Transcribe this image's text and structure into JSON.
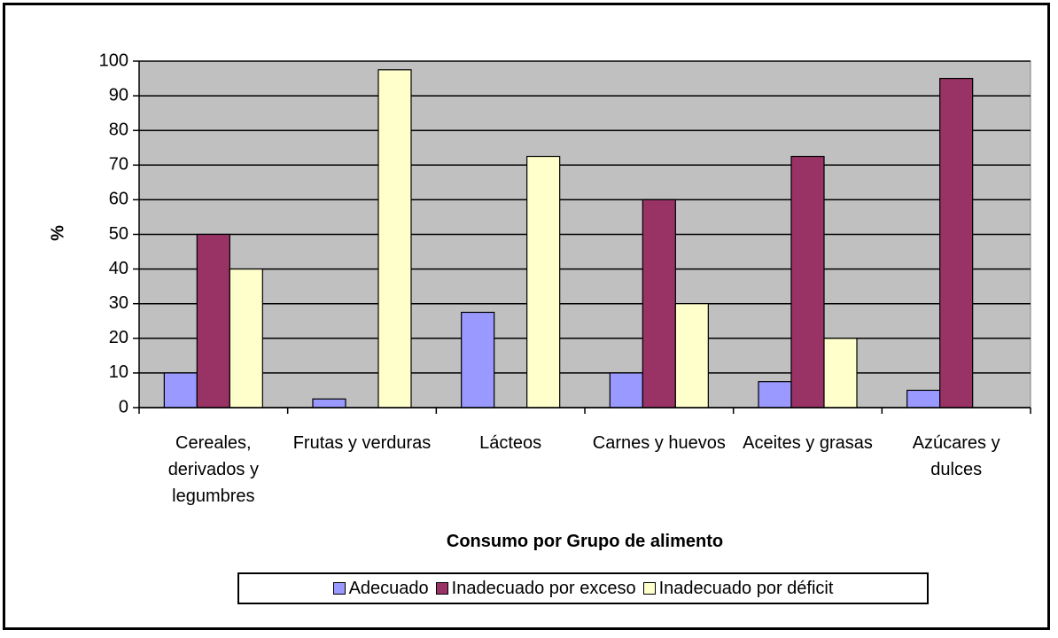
{
  "chart_data": {
    "type": "bar",
    "y_label": "%",
    "x_label": "Consumo por Grupo de alimento",
    "categories": [
      "Cereales, derivados y legumbres",
      "Frutas y verduras",
      "Lácteos",
      "Carnes y huevos",
      "Aceites y grasas",
      "Azúcares y dulces"
    ],
    "series": [
      {
        "name": "Adecuado",
        "color": "#9999ff",
        "values": [
          10,
          2.5,
          27.5,
          10,
          7.5,
          5
        ]
      },
      {
        "name": "Inadecuado por exceso",
        "color": "#993366",
        "values": [
          50,
          0,
          0,
          60,
          72.5,
          95
        ]
      },
      {
        "name": "Inadecuado por déficit",
        "color": "#ffffcc",
        "values": [
          40,
          97.5,
          72.5,
          30,
          20,
          0
        ]
      }
    ],
    "ylim": [
      0,
      100
    ],
    "yticks": [
      0,
      10,
      20,
      30,
      40,
      50,
      60,
      70,
      80,
      90,
      100
    ],
    "grid": true,
    "plot_background": "#c0c0c0"
  }
}
